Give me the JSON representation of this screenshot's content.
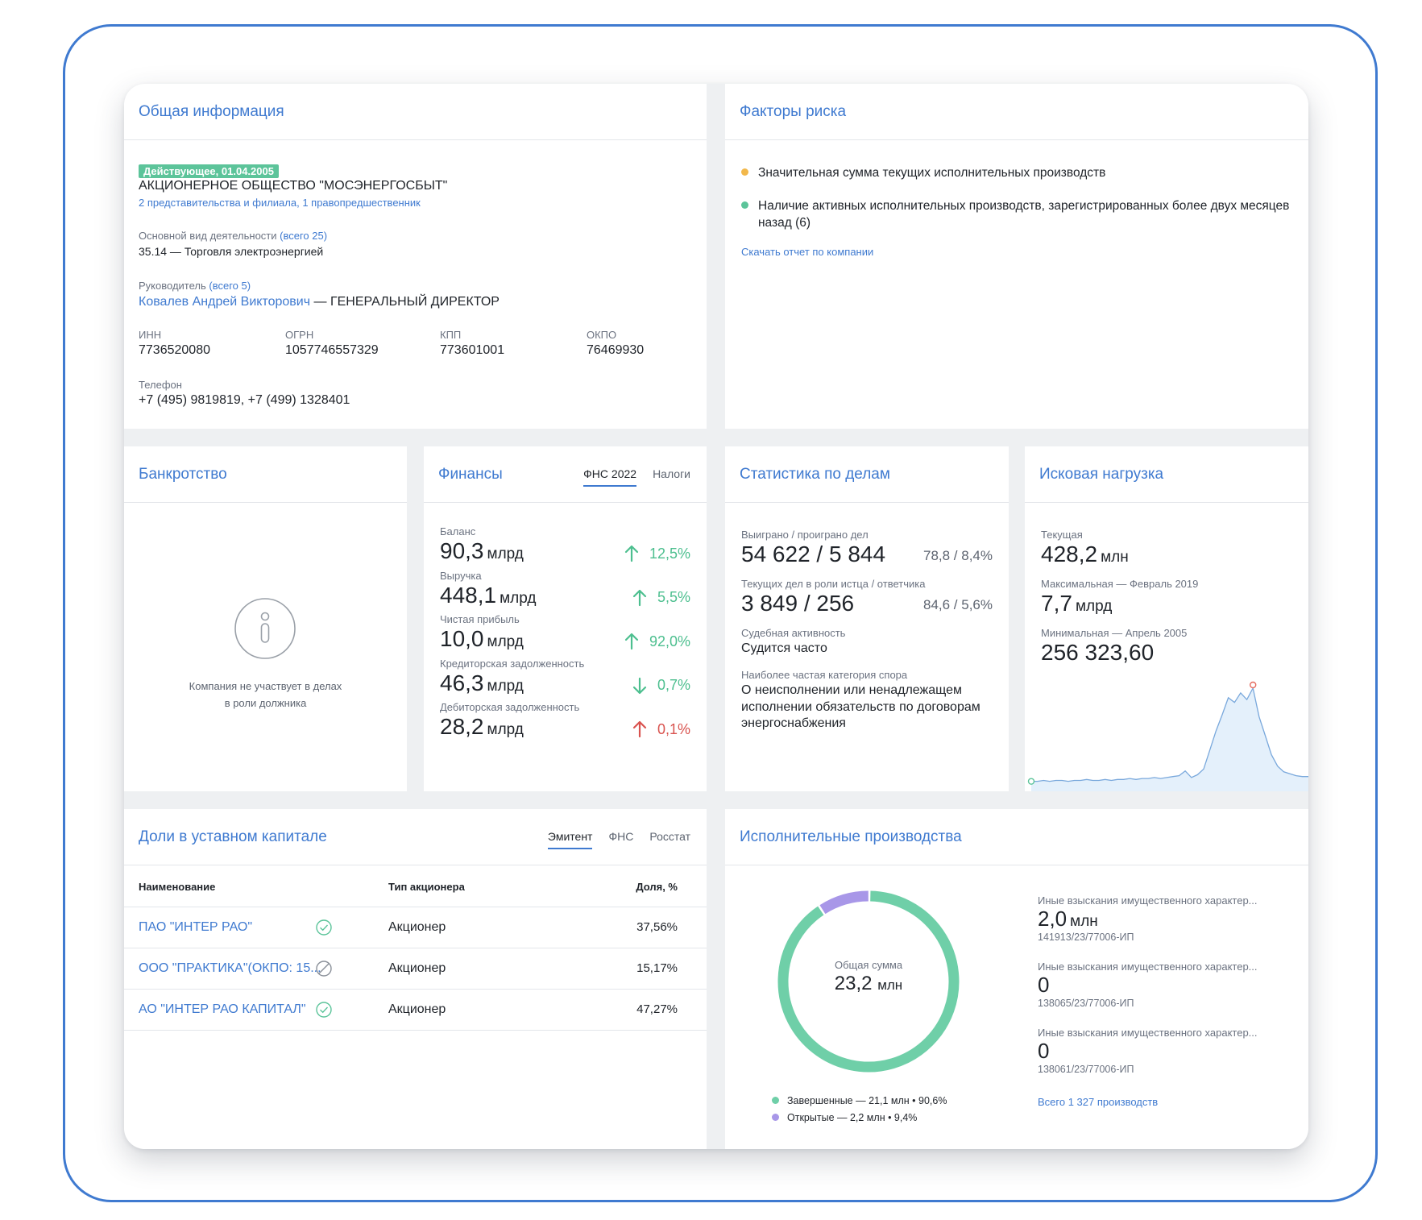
{
  "general": {
    "title": "Общая информация",
    "status_badge": "Действующее, 01.04.2005",
    "company_name": "АКЦИОНЕРНОЕ ОБЩЕСТВО \"МОСЭНЕРГОСБЫТ\"",
    "branches_link": "2 представительства и филиала, 1 правопредшественник",
    "activity_label": "Основной вид деятельности",
    "activity_total": "(всего 25)",
    "activity_value": "35.14 — Торговля электроэнергией",
    "head_label": "Руководитель",
    "head_total": "(всего 5)",
    "head_name": "Ковалев Андрей Викторович",
    "head_role": " — ГЕНЕРАЛЬНЫЙ ДИРЕКТОР",
    "ids": [
      {
        "label": "ИНН",
        "value": "7736520080"
      },
      {
        "label": "ОГРН",
        "value": "1057746557329"
      },
      {
        "label": "КПП",
        "value": "773601001"
      },
      {
        "label": "ОКПО",
        "value": "76469930"
      }
    ],
    "phone_label": "Телефон",
    "phone_value": "+7 (495) 9819819, +7 (499) 1328401"
  },
  "risk": {
    "title": "Факторы риска",
    "items": [
      {
        "text": "Значительная сумма текущих исполнительных производств",
        "color": "#f2b84b"
      },
      {
        "text": "Наличие активных исполнительных производств, зарегистрированных более двух месяцев назад (6)",
        "color": "#5cc49a"
      }
    ],
    "download_link": "Скачать отчет по компании"
  },
  "bankruptcy": {
    "title": "Банкротство",
    "icon": "info-icon",
    "message_line1": "Компания не участвует в делах",
    "message_line2": "в роли должника"
  },
  "finance": {
    "title": "Финансы",
    "tabs": [
      "ФНС 2022",
      "Налоги"
    ],
    "active_tab": "ФНС 2022",
    "rows": [
      {
        "label": "Баланс",
        "value": "90,3",
        "unit": "млрд",
        "change": "12,5%",
        "direction": "up",
        "color": "#4dbf8f"
      },
      {
        "label": "Выручка",
        "value": "448,1",
        "unit": "млрд",
        "change": "5,5%",
        "direction": "up",
        "color": "#4dbf8f"
      },
      {
        "label": "Чистая прибыль",
        "value": "10,0",
        "unit": "млрд",
        "change": "92,0%",
        "direction": "up",
        "color": "#4dbf8f"
      },
      {
        "label": "Кредиторская задолженность",
        "value": "46,3",
        "unit": "млрд",
        "change": "0,7%",
        "direction": "down",
        "color": "#4dbf8f"
      },
      {
        "label": "Дебиторская задолженность",
        "value": "28,2",
        "unit": "млрд",
        "change": "0,1%",
        "direction": "up",
        "color": "#d9534f"
      }
    ]
  },
  "cases": {
    "title": "Статистика по делам",
    "won_lost_label": "Выиграно / проиграно дел",
    "won_lost_value": "54 622 / 5 844",
    "won_lost_pct": "78,8 / 8,4%",
    "current_label": "Текущих дел в роли истца / ответчика",
    "current_value": "3 849 / 256",
    "current_pct": "84,6 / 5,6%",
    "activity_label": "Судебная активность",
    "activity_value": "Судится часто",
    "category_label": "Наиболее частая категория спора",
    "category_value": "О неисполнении или ненадлежащем исполнении обязательств по договорам энергоснабжения"
  },
  "claims": {
    "title": "Исковая нагрузка",
    "current_label": "Текущая",
    "current_value": "428,2",
    "current_unit": "млн",
    "max_label": "Максимальная — Февраль 2019",
    "max_value": "7,7",
    "max_unit": "млрд",
    "min_label": "Минимальная — Апрель 2005",
    "min_value": "256 323,60",
    "sparkline": [
      0.02,
      0.02,
      0.03,
      0.02,
      0.03,
      0.03,
      0.02,
      0.03,
      0.03,
      0.04,
      0.03,
      0.03,
      0.04,
      0.03,
      0.04,
      0.04,
      0.05,
      0.04,
      0.05,
      0.05,
      0.06,
      0.05,
      0.06,
      0.07,
      0.08,
      0.13,
      0.06,
      0.09,
      0.15,
      0.35,
      0.55,
      0.72,
      0.9,
      0.85,
      0.95,
      0.88,
      1.0,
      0.7,
      0.5,
      0.3,
      0.18,
      0.12,
      0.1,
      0.08,
      0.07,
      0.07
    ]
  },
  "shares": {
    "title": "Доли в уставном капитале",
    "tabs": [
      "Эмитент",
      "ФНС",
      "Росстат"
    ],
    "active_tab": "Эмитент",
    "columns": [
      "Наименование",
      "Тип акционера",
      "Доля, %"
    ],
    "rows": [
      {
        "name": "ПАО \"ИНТЕР РАО\"",
        "status": "check",
        "type": "Акционер",
        "share": "37,56%"
      },
      {
        "name": "ООО \"ПРАКТИКА\"(ОКПО: 15...",
        "status": "blocked",
        "type": "Акционер",
        "share": "15,17%"
      },
      {
        "name": "АО \"ИНТЕР РАО КАПИТАЛ\"",
        "status": "check",
        "type": "Акционер",
        "share": "47,27%"
      }
    ]
  },
  "enforcement": {
    "title": "Исполнительные производства",
    "donut_label": "Общая сумма",
    "donut_value": "23,2",
    "donut_unit": "млн",
    "slices": [
      {
        "name": "Завершенные — 21,1 млн • 90,6%",
        "fraction": 0.906,
        "color": "#6fcfa8"
      },
      {
        "name": "Открытые — 2,2 млн • 9,4%",
        "fraction": 0.094,
        "color": "#a897e8"
      }
    ],
    "items": [
      {
        "label": "Иные взыскания имущественного характер...",
        "value": "2,0",
        "unit": "млн",
        "number": "141913/23/77006-ИП"
      },
      {
        "label": "Иные взыскания имущественного характер...",
        "value": "0",
        "unit": "",
        "number": "138065/23/77006-ИП"
      },
      {
        "label": "Иные взыскания имущественного характер...",
        "value": "0",
        "unit": "",
        "number": "138061/23/77006-ИП"
      }
    ],
    "total_link": "Всего 1 327 производств"
  }
}
